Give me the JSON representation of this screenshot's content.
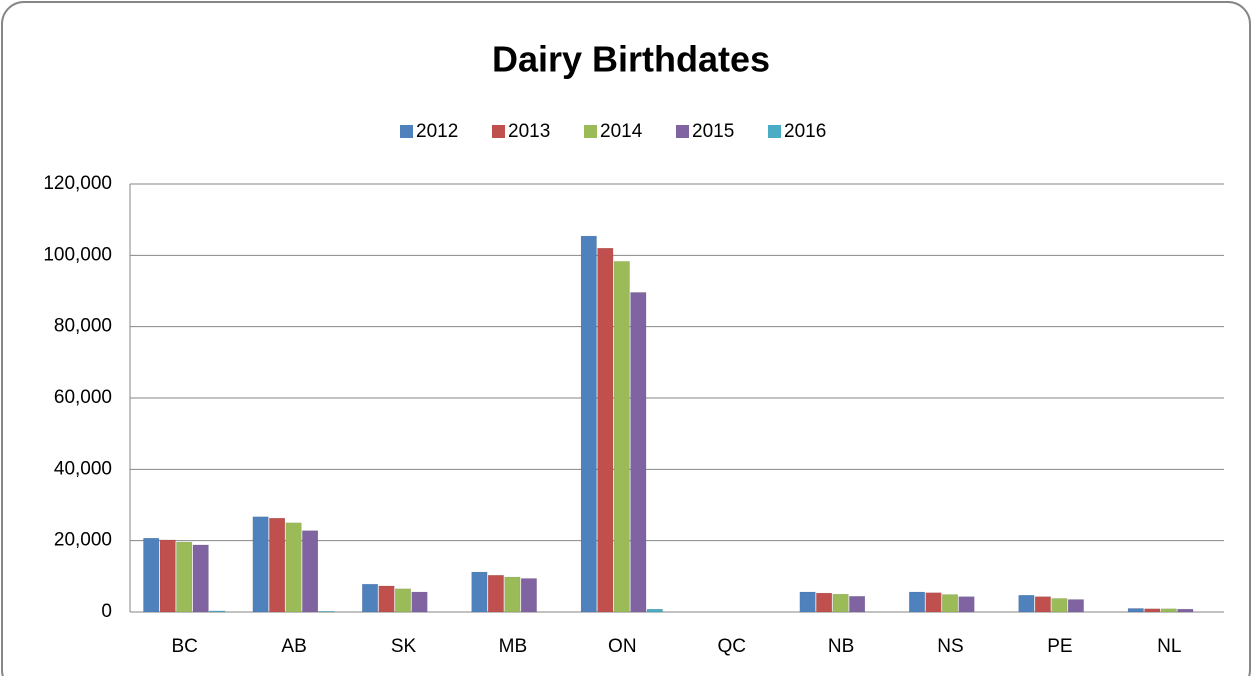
{
  "chart_data": {
    "type": "bar",
    "title": "Dairy Birthdates",
    "categories": [
      "BC",
      "AB",
      "SK",
      "MB",
      "ON",
      "QC",
      "NB",
      "NS",
      "PE",
      "NL"
    ],
    "series": [
      {
        "name": "2012",
        "color": "#4f81bd",
        "values": [
          20700,
          26700,
          7800,
          11200,
          105400,
          0,
          5600,
          5600,
          4700,
          1000
        ]
      },
      {
        "name": "2013",
        "color": "#c0504d",
        "values": [
          20200,
          26300,
          7300,
          10300,
          102000,
          0,
          5300,
          5400,
          4300,
          900
        ]
      },
      {
        "name": "2014",
        "color": "#9bbb59",
        "values": [
          19600,
          25000,
          6500,
          9800,
          98300,
          0,
          5000,
          4900,
          3800,
          900
        ]
      },
      {
        "name": "2015",
        "color": "#8064a2",
        "values": [
          18800,
          22800,
          5600,
          9400,
          89600,
          0,
          4400,
          4300,
          3500,
          800
        ]
      },
      {
        "name": "2016",
        "color": "#4bacc6",
        "values": [
          300,
          200,
          0,
          0,
          800,
          0,
          0,
          0,
          0,
          0
        ]
      }
    ],
    "ylim": [
      0,
      120000
    ],
    "yticks": [
      0,
      {
        "value": 20000,
        "label": "20,000"
      },
      {
        "value": 40000,
        "label": "40,000"
      },
      {
        "value": 60000,
        "label": "60,000"
      },
      {
        "value": 80000,
        "label": "80,000"
      },
      {
        "value": 100000,
        "label": "100,000"
      },
      {
        "value": 120000,
        "label": "120,000"
      }
    ],
    "grid": true,
    "legend": "top"
  }
}
